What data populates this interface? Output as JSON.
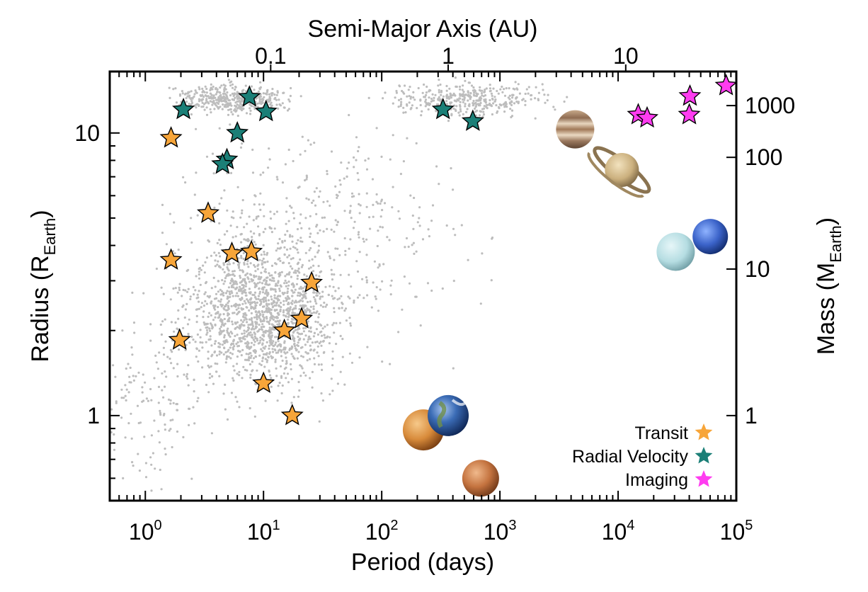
{
  "chart_data": {
    "type": "scatter",
    "title": "",
    "xlabel": "Period (days)",
    "x2label": "Semi-Major Axis (AU)",
    "ylabel_main": "Radius (R",
    "ylabel_sub": "Earth",
    "ylabel_close": ")",
    "y2label_main": "Mass (M",
    "y2label_sub": "Earth",
    "y2label_close": ")",
    "x_scale": "log",
    "y_scale": "log",
    "xlim": [
      0.5,
      100000
    ],
    "ylim": [
      0.5,
      16.5
    ],
    "x_ticks": [
      {
        "value": 1,
        "base": "10",
        "exp": "0"
      },
      {
        "value": 10,
        "base": "10",
        "exp": "1"
      },
      {
        "value": 100,
        "base": "10",
        "exp": "2"
      },
      {
        "value": 1000,
        "base": "10",
        "exp": "3"
      },
      {
        "value": 10000,
        "base": "10",
        "exp": "4"
      },
      {
        "value": 100000,
        "base": "10",
        "exp": "5"
      }
    ],
    "y_ticks": [
      {
        "value": 1,
        "label": "1"
      },
      {
        "value": 10,
        "label": "10"
      }
    ],
    "top_ticks": [
      {
        "period": 11.5,
        "label": "0.1"
      },
      {
        "period": 365,
        "label": "1"
      },
      {
        "period": 11600,
        "label": "10"
      }
    ],
    "right_ticks": [
      {
        "radius": 1,
        "label": "1"
      },
      {
        "radius": 3.3,
        "label": "10"
      },
      {
        "radius": 8.2,
        "label": "100"
      },
      {
        "radius": 12.5,
        "label": "1000"
      }
    ],
    "grid": false,
    "legend_position": "bottom-right",
    "legend": [
      {
        "label": "Transit",
        "color": "#f7a539"
      },
      {
        "label": "Radial Velocity",
        "color": "#1b7f77"
      },
      {
        "label": "Imaging",
        "color": "#ff3cf0"
      }
    ],
    "background_points": {
      "color": "#bdbdbd",
      "count": 2600,
      "description": "Known exoplanets (gray dots)"
    },
    "series": [
      {
        "name": "Transit",
        "color": "#f7a539",
        "points": [
          {
            "x": 1.65,
            "y": 9.6
          },
          {
            "x": 3.4,
            "y": 5.2
          },
          {
            "x": 1.65,
            "y": 3.55
          },
          {
            "x": 5.4,
            "y": 3.75
          },
          {
            "x": 7.9,
            "y": 3.8
          },
          {
            "x": 25.5,
            "y": 2.95
          },
          {
            "x": 21,
            "y": 2.2
          },
          {
            "x": 15,
            "y": 2.0
          },
          {
            "x": 1.95,
            "y": 1.85
          },
          {
            "x": 10,
            "y": 1.3
          },
          {
            "x": 17.5,
            "y": 1.0
          }
        ]
      },
      {
        "name": "Radial Velocity",
        "color": "#1b7f77",
        "points": [
          {
            "x": 2.1,
            "y": 12.1
          },
          {
            "x": 7.6,
            "y": 13.4
          },
          {
            "x": 10.5,
            "y": 11.9
          },
          {
            "x": 6.0,
            "y": 10.0
          },
          {
            "x": 4.9,
            "y": 8.05
          },
          {
            "x": 4.5,
            "y": 7.75
          },
          {
            "x": 330,
            "y": 12.1
          },
          {
            "x": 590,
            "y": 11.0
          }
        ]
      },
      {
        "name": "Imaging",
        "color": "#ff3cf0",
        "points": [
          {
            "x": 14800,
            "y": 11.6
          },
          {
            "x": 17600,
            "y": 11.3
          },
          {
            "x": 40500,
            "y": 13.5
          },
          {
            "x": 40000,
            "y": 11.6
          },
          {
            "x": 82000,
            "y": 14.7
          }
        ]
      }
    ],
    "solar_system": [
      {
        "name": "Mercury-Venus",
        "x": 225,
        "y": 0.89
      },
      {
        "name": "Earth",
        "x": 365,
        "y": 1.0
      },
      {
        "name": "Mars",
        "x": 687,
        "y": 0.6
      },
      {
        "name": "Jupiter",
        "x": 4330,
        "y": 10.3
      },
      {
        "name": "Saturn",
        "x": 10760,
        "y": 7.4
      },
      {
        "name": "Uranus",
        "x": 30700,
        "y": 3.8
      },
      {
        "name": "Neptune",
        "x": 60200,
        "y": 4.3
      }
    ]
  }
}
